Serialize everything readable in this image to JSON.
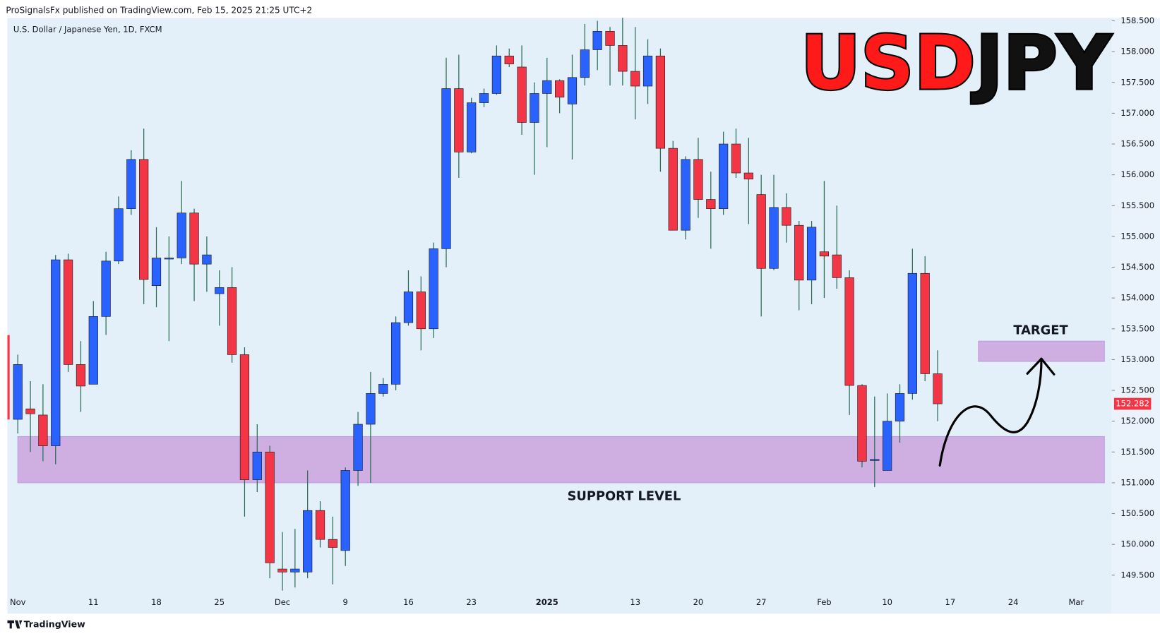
{
  "chart_data": {
    "type": "candlestick",
    "header": "ProSignalsFx published on TradingView.com, Feb 15, 2025 21:25 UTC+2",
    "symbol": "U.S. Dollar / Japanese Yen, 1D, FXCM",
    "title_parts": [
      {
        "text": "USD",
        "color": "#ff1a1a"
      },
      {
        "text": "JPY",
        "color": "#111111"
      }
    ],
    "footer": "TradingView",
    "up_color": "#2962ff",
    "down_color": "#f23645",
    "wick_color": "#2b6e57",
    "categories": [
      "Nov",
      null,
      null,
      null,
      null,
      null,
      "11",
      null,
      null,
      null,
      null,
      "18",
      null,
      null,
      null,
      null,
      "25",
      null,
      null,
      null,
      null,
      "Dec",
      null,
      null,
      null,
      null,
      "9",
      null,
      null,
      null,
      null,
      "16",
      null,
      null,
      null,
      null,
      "23",
      null,
      null,
      null,
      null,
      null,
      "2025",
      null,
      null,
      null,
      null,
      null,
      null,
      "13",
      null,
      null,
      null,
      null,
      "20",
      null,
      null,
      null,
      null,
      "27",
      null,
      null,
      null,
      null,
      "Feb",
      null,
      null,
      null,
      null,
      "10",
      null,
      null,
      null,
      null,
      "17",
      null,
      null,
      null,
      null,
      "24",
      null,
      null,
      null,
      null,
      "Mar",
      null,
      null
    ],
    "open": [
      152.03,
      152.2,
      152.1,
      151.6,
      154.62,
      152.92,
      152.6,
      153.7,
      154.6,
      155.45,
      156.25,
      154.2,
      154.65,
      154.65,
      155.38,
      154.55,
      154.07,
      154.17,
      153.08,
      151.05,
      151.5,
      149.6,
      149.55,
      149.55,
      150.55,
      150.08,
      149.9,
      151.2,
      151.95,
      152.45,
      152.6,
      153.6,
      154.1,
      153.5,
      154.8,
      157.4,
      156.37,
      157.17,
      157.32,
      157.93,
      157.75,
      156.85,
      157.32,
      157.53,
      157.15,
      157.58,
      158.03,
      158.33,
      158.1,
      157.68,
      157.44,
      157.93,
      156.43,
      155.1,
      156.25,
      155.6,
      155.45,
      156.5,
      156.03,
      155.68,
      154.48,
      155.47,
      155.18,
      154.29,
      154.75,
      154.7,
      154.33,
      152.58,
      151.37,
      151.2,
      152.0,
      152.45,
      154.4,
      152.77,
      null,
      null,
      null,
      null,
      null,
      null,
      null,
      null,
      null,
      null,
      null,
      null,
      null
    ],
    "high": [
      153.08,
      152.65,
      152.6,
      154.7,
      154.72,
      153.3,
      153.95,
      154.75,
      155.65,
      156.4,
      156.75,
      155.15,
      155.0,
      155.9,
      155.45,
      155.0,
      154.45,
      154.5,
      153.2,
      151.95,
      151.6,
      150.2,
      150.25,
      151.2,
      150.7,
      150.45,
      151.25,
      152.15,
      152.8,
      152.7,
      153.7,
      154.45,
      154.35,
      154.9,
      157.9,
      157.95,
      157.25,
      157.4,
      158.1,
      158.05,
      158.1,
      157.5,
      157.9,
      157.55,
      157.95,
      158.45,
      158.5,
      158.4,
      158.55,
      158.4,
      158.2,
      158.05,
      156.55,
      156.3,
      156.6,
      156.05,
      156.7,
      156.75,
      156.6,
      156.0,
      156.0,
      155.7,
      155.25,
      155.25,
      155.9,
      155.5,
      154.45,
      152.6,
      152.4,
      152.45,
      152.6,
      154.8,
      154.68,
      153.15,
      null,
      null,
      null,
      null,
      null,
      null,
      null,
      null,
      null,
      null,
      null,
      null,
      null
    ],
    "low": [
      151.8,
      151.5,
      151.35,
      151.3,
      152.8,
      152.15,
      152.6,
      153.4,
      154.55,
      155.35,
      153.9,
      153.85,
      153.3,
      154.55,
      153.95,
      154.1,
      153.55,
      152.95,
      150.45,
      150.85,
      149.45,
      149.25,
      149.3,
      149.45,
      149.95,
      149.35,
      149.65,
      150.95,
      151.0,
      152.4,
      152.5,
      153.55,
      153.15,
      153.35,
      154.5,
      155.95,
      156.35,
      157.1,
      157.3,
      157.75,
      156.65,
      156.0,
      156.45,
      157.0,
      156.25,
      157.45,
      157.7,
      157.45,
      157.45,
      156.9,
      157.15,
      156.05,
      155.1,
      154.95,
      155.3,
      154.8,
      155.35,
      155.95,
      155.2,
      153.7,
      154.45,
      154.9,
      153.8,
      153.9,
      154.0,
      154.15,
      152.1,
      151.25,
      150.93,
      151.2,
      151.65,
      152.35,
      152.65,
      152.0,
      null,
      null,
      null,
      null,
      null,
      null,
      null,
      null,
      null,
      null,
      null,
      null,
      null
    ],
    "close": [
      152.92,
      152.12,
      151.6,
      154.62,
      152.92,
      152.57,
      153.7,
      154.6,
      155.45,
      156.25,
      154.3,
      154.65,
      154.65,
      155.38,
      154.55,
      154.7,
      154.17,
      153.08,
      151.05,
      151.5,
      149.7,
      149.55,
      149.6,
      150.55,
      150.08,
      149.95,
      151.2,
      151.95,
      152.45,
      152.6,
      153.6,
      154.1,
      153.5,
      154.8,
      157.4,
      156.37,
      157.17,
      157.32,
      157.93,
      157.8,
      156.85,
      157.32,
      157.53,
      157.26,
      157.58,
      158.03,
      158.33,
      158.1,
      157.68,
      157.44,
      157.93,
      156.43,
      155.1,
      156.25,
      155.6,
      155.45,
      156.5,
      156.03,
      155.93,
      154.48,
      155.47,
      155.18,
      154.29,
      155.15,
      154.68,
      154.33,
      152.58,
      151.35,
      151.38,
      152.0,
      152.45,
      154.4,
      152.77,
      152.282,
      null,
      null,
      null,
      null,
      null,
      null,
      null,
      null,
      null,
      null,
      null,
      null,
      null
    ],
    "last_price": {
      "value": 152.282,
      "label": "152.282"
    },
    "ylim": [
      149.2,
      158.67
    ],
    "yticks": [
      {
        "value": 149.5,
        "label": "149.500"
      },
      {
        "value": 150,
        "label": "150.000"
      },
      {
        "value": 150.5,
        "label": "150.500"
      },
      {
        "value": 151,
        "label": "151.000"
      },
      {
        "value": 151.5,
        "label": "151.500"
      },
      {
        "value": 152,
        "label": "152.000"
      },
      {
        "value": 152.5,
        "label": "152.500"
      },
      {
        "value": 153,
        "label": "153.000"
      },
      {
        "value": 153.5,
        "label": "153.500"
      },
      {
        "value": 154,
        "label": "154.000"
      },
      {
        "value": 154.5,
        "label": "154.500"
      },
      {
        "value": 155,
        "label": "155.000"
      },
      {
        "value": 155.5,
        "label": "155.500"
      },
      {
        "value": 156,
        "label": "156.000"
      },
      {
        "value": 156.5,
        "label": "156.500"
      },
      {
        "value": 157,
        "label": "157.000"
      },
      {
        "value": 157.5,
        "label": "157.500"
      },
      {
        "value": 158,
        "label": "158.000"
      },
      {
        "value": 158.5,
        "label": "158.500"
      }
    ],
    "grid": false,
    "zones": [
      {
        "label": "SUPPORT LEVEL",
        "ylim": [
          151.0,
          151.75
        ],
        "color": "#cfaee2"
      },
      {
        "label": "TARGET",
        "ylim": [
          152.97,
          153.3
        ],
        "color": "#cfaee2"
      }
    ]
  }
}
